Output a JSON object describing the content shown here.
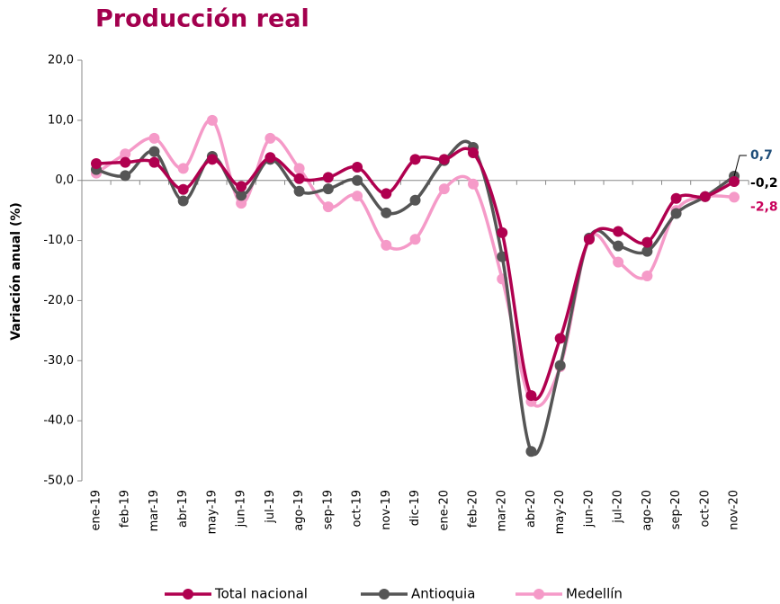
{
  "chart_data": {
    "type": "line",
    "title": "Producción real",
    "y_label": "Variación anual (%)",
    "categories": [
      "ene-19",
      "feb-19",
      "mar-19",
      "abr-19",
      "may-19",
      "jun-19",
      "jul-19",
      "ago-19",
      "sep-19",
      "oct-19",
      "nov-19",
      "dic-19",
      "ene-20",
      "feb-20",
      "mar-20",
      "abr-20",
      "may-20",
      "jun-20",
      "jul-20",
      "ago-20",
      "sep-20",
      "oct-20",
      "nov-20"
    ],
    "series": [
      {
        "name": "Total nacional",
        "color": "#b0004f",
        "label_color": "#000000",
        "values": [
          2.8,
          3.0,
          3.0,
          -1.5,
          3.5,
          -1.0,
          3.8,
          0.3,
          0.5,
          2.2,
          -2.2,
          3.5,
          3.5,
          4.6,
          -8.7,
          -35.8,
          -26.3,
          -9.8,
          -8.5,
          -10.3,
          -3.0,
          -2.7,
          -0.2
        ],
        "value_labels": [
          null,
          null,
          null,
          null,
          null,
          null,
          null,
          null,
          null,
          null,
          null,
          null,
          null,
          null,
          null,
          null,
          null,
          null,
          null,
          null,
          null,
          null,
          "-0,2"
        ]
      },
      {
        "name": "Antioquia",
        "color": "#555555",
        "label_color": "#1f4e79",
        "values": [
          1.8,
          0.8,
          4.8,
          -3.4,
          4.0,
          -2.5,
          3.5,
          -1.8,
          -1.4,
          0.0,
          -5.4,
          -3.3,
          3.3,
          5.5,
          -12.7,
          -45.1,
          -30.8,
          -9.6,
          -10.9,
          -11.8,
          -5.5,
          -2.7,
          0.7
        ],
        "value_labels": [
          null,
          null,
          null,
          null,
          null,
          null,
          null,
          null,
          null,
          null,
          null,
          null,
          null,
          null,
          null,
          null,
          null,
          null,
          null,
          null,
          null,
          null,
          "0,7"
        ]
      },
      {
        "name": "Medellín",
        "color": "#f59ac8",
        "label_color": "#c8005a",
        "values": [
          1.2,
          4.4,
          7.0,
          2.0,
          10.0,
          -3.8,
          7.0,
          2.0,
          -4.4,
          -2.6,
          -10.8,
          -9.8,
          -1.4,
          -0.6,
          -16.4,
          -36.8,
          -31.0,
          -9.8,
          -13.6,
          -15.9,
          -5.0,
          -2.7,
          -2.8
        ],
        "value_labels": [
          null,
          null,
          null,
          null,
          null,
          null,
          null,
          null,
          null,
          null,
          null,
          null,
          null,
          null,
          null,
          null,
          null,
          null,
          null,
          null,
          null,
          null,
          "-2,8"
        ]
      }
    ],
    "ylim": [
      -50,
      20
    ],
    "yticks": [
      {
        "value": -50,
        "label": "-50,0"
      },
      {
        "value": -40,
        "label": "-40,0"
      },
      {
        "value": -30,
        "label": "-30,0"
      },
      {
        "value": -20,
        "label": "-20,0"
      },
      {
        "value": -10,
        "label": "-10,0"
      },
      {
        "value": 0,
        "label": "0,0"
      },
      {
        "value": 10,
        "label": "10,0"
      },
      {
        "value": 20,
        "label": "20,0"
      }
    ],
    "title_color": "#a3004e"
  }
}
